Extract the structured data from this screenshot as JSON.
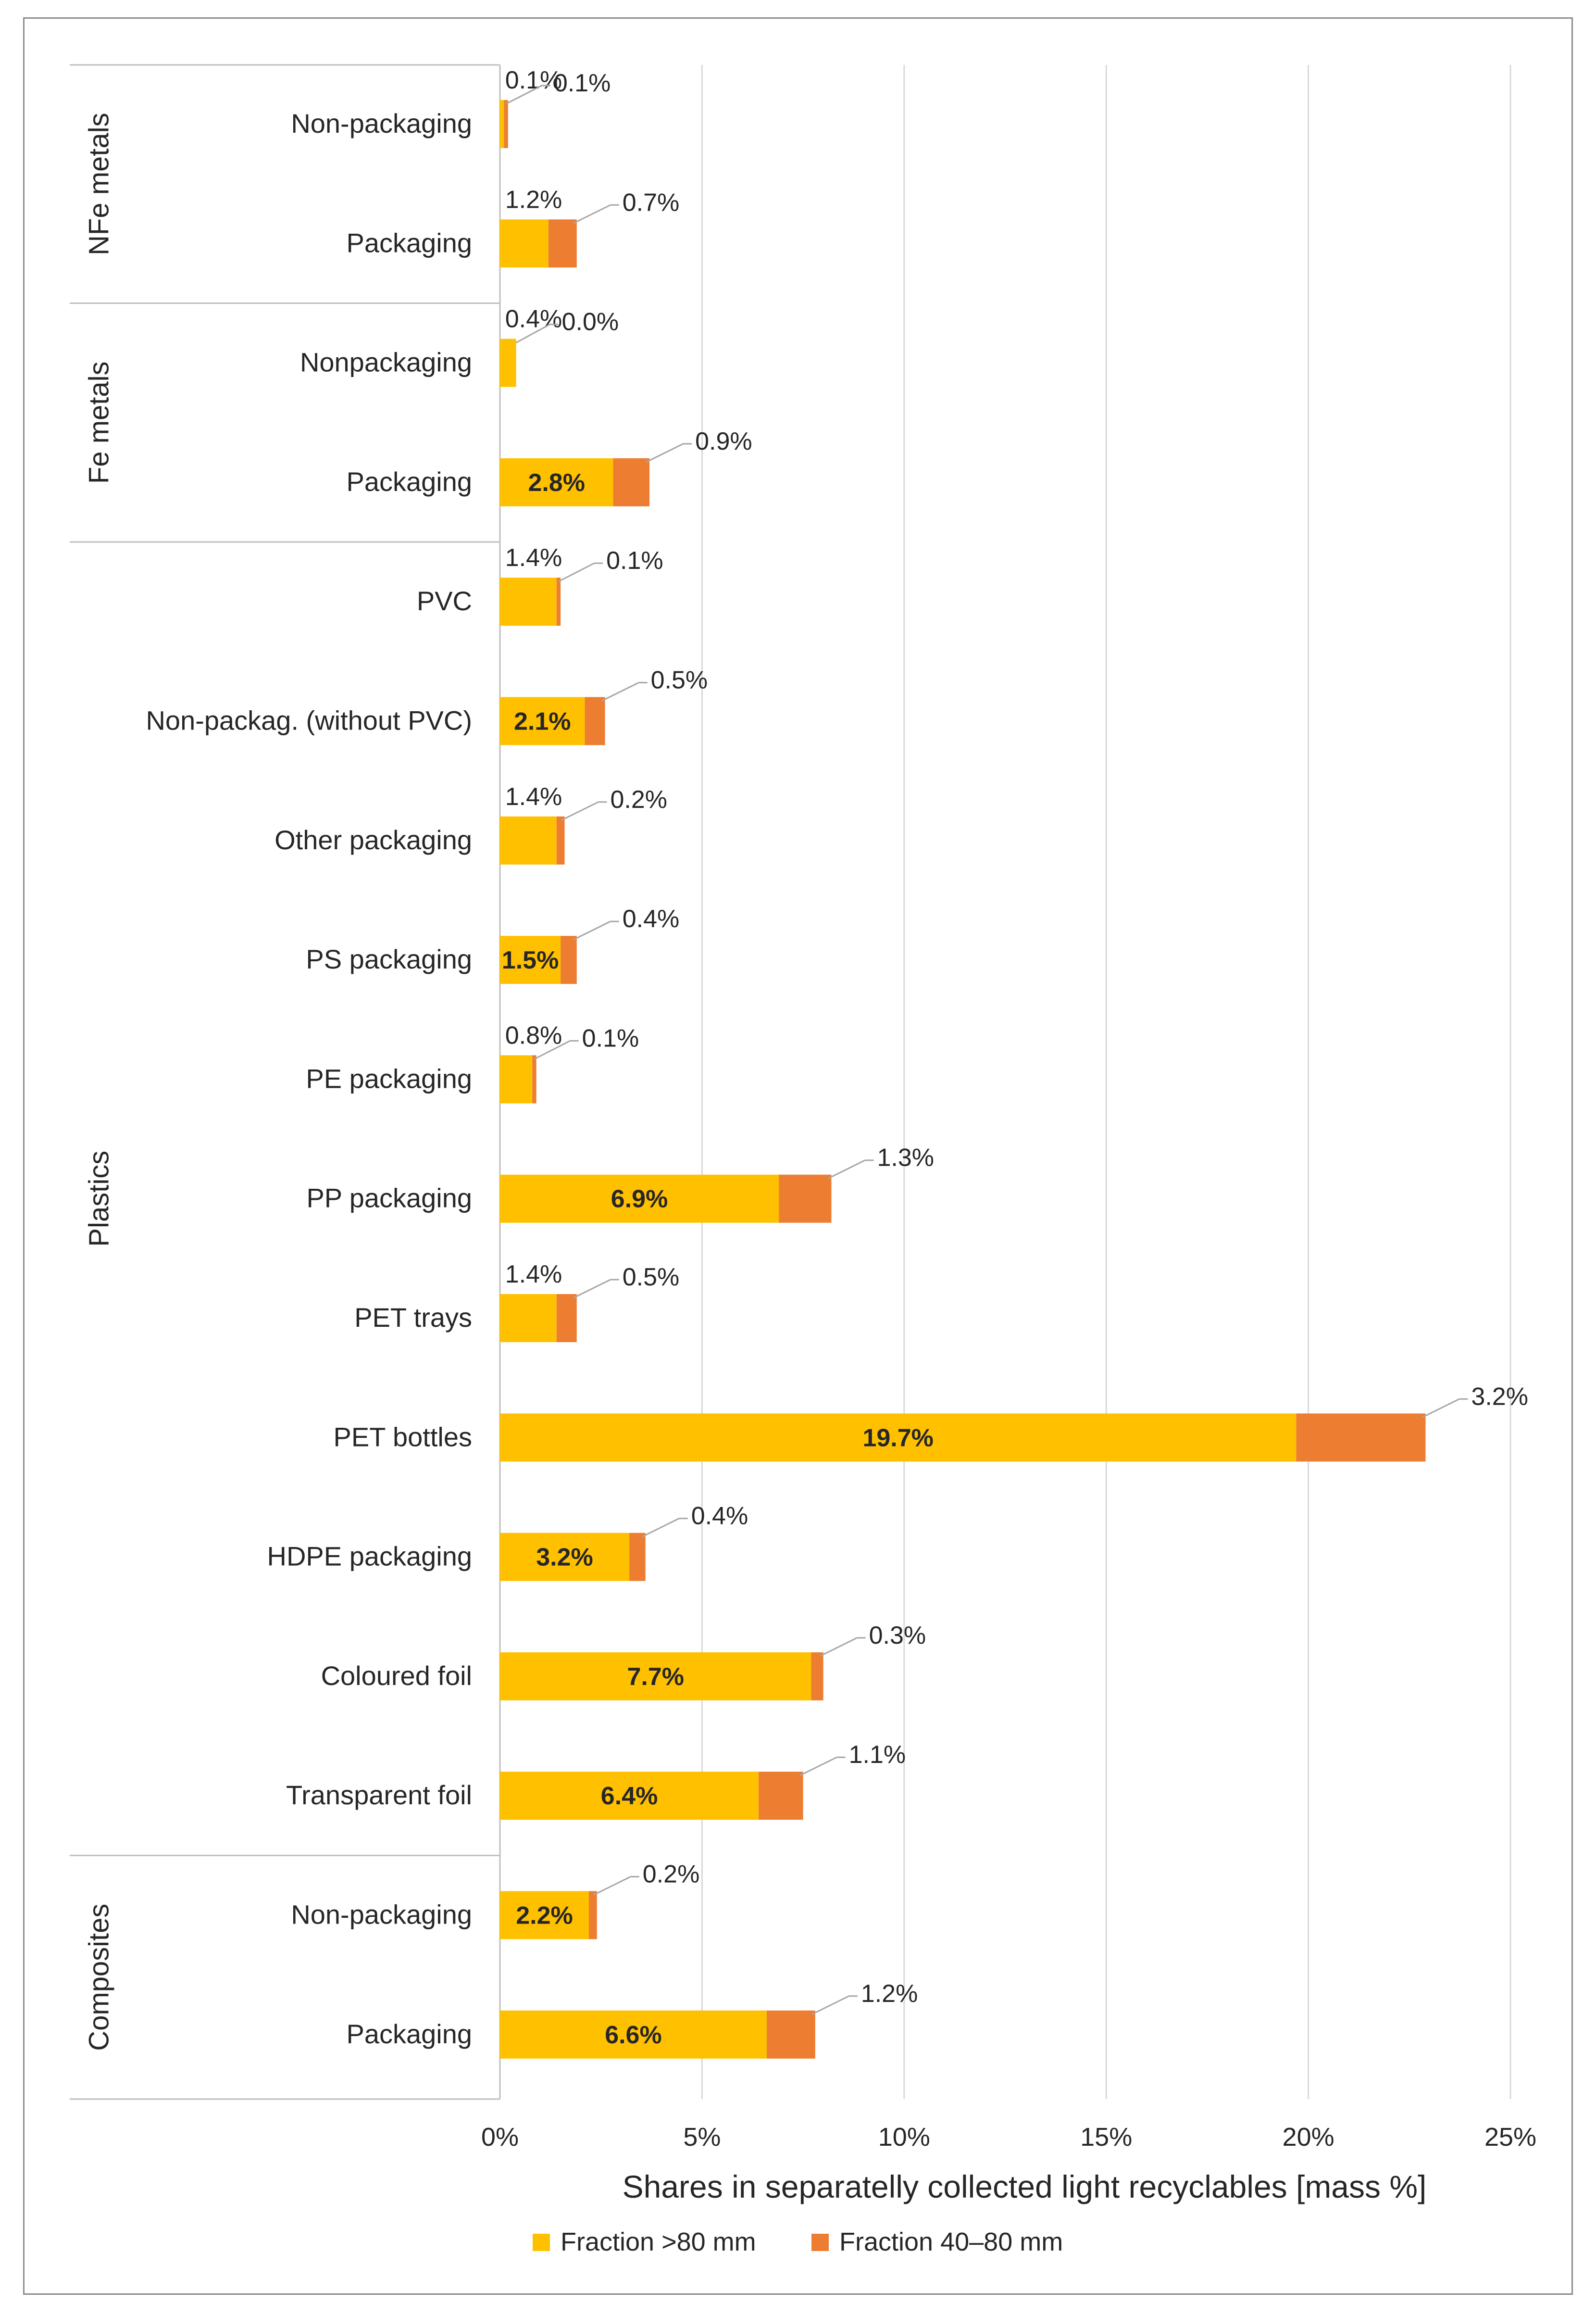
{
  "chart_data": {
    "type": "bar",
    "stacked": true,
    "orientation": "horizontal",
    "xlabel": "Shares in separatelly collected light recyclables [mass %]",
    "xlim": [
      0,
      25
    ],
    "x_ticks": [
      "0%",
      "5%",
      "10%",
      "15%",
      "20%",
      "25%"
    ],
    "grid": true,
    "legend_position": "bottom",
    "groups": [
      {
        "name": "NFe metals",
        "categories": [
          "Non-packaging",
          "Packaging"
        ]
      },
      {
        "name": "Fe metals",
        "categories": [
          "Nonpackaging",
          "Packaging"
        ]
      },
      {
        "name": "Plastics",
        "categories": [
          "PVC",
          "Non-packag. (without PVC)",
          "Other packaging",
          "PS packaging",
          "PE packaging",
          "PP packaging",
          "PET trays",
          "PET bottles",
          "HDPE packaging",
          "Coloured foil",
          "Transparent foil"
        ]
      },
      {
        "name": "Composites",
        "categories": [
          "Non-packaging",
          "Packaging"
        ]
      }
    ],
    "categories": [
      "Non-packaging",
      "Packaging",
      "Nonpackaging",
      "Packaging",
      "PVC",
      "Non-packag. (without PVC)",
      "Other packaging",
      "PS packaging",
      "PE packaging",
      "PP packaging",
      "PET trays",
      "PET bottles",
      "HDPE packaging",
      "Coloured foil",
      "Transparent foil",
      "Non-packaging",
      "Packaging"
    ],
    "series": [
      {
        "name": "Fraction >80 mm",
        "color": "#FFC000",
        "values": [
          0.1,
          1.2,
          0.4,
          2.8,
          1.4,
          2.1,
          1.4,
          1.5,
          0.8,
          6.9,
          1.4,
          19.7,
          3.2,
          7.7,
          6.4,
          2.2,
          6.6
        ],
        "labels": [
          "0.1%",
          "1.2%",
          "0.4%",
          "2.8%",
          "1.4%",
          "2.1%",
          "1.4%",
          "1.5%",
          "0.8%",
          "6.9%",
          "1.4%",
          "19.7%",
          "3.2%",
          "7.7%",
          "6.4%",
          "2.2%",
          "6.6%"
        ]
      },
      {
        "name": "Fraction 40–80  mm",
        "color": "#ED7D31",
        "values": [
          0.1,
          0.7,
          0.0,
          0.9,
          0.1,
          0.5,
          0.2,
          0.4,
          0.1,
          1.3,
          0.5,
          3.2,
          0.4,
          0.3,
          1.1,
          0.2,
          1.2
        ],
        "labels": [
          "0.1%",
          "0.7%",
          "0.0%",
          "0.9%",
          "0.1%",
          "0.5%",
          "0.2%",
          "0.4%",
          "0.1%",
          "1.3%",
          "0.5%",
          "3.2%",
          "0.4%",
          "0.3%",
          "1.1%",
          "0.2%",
          "1.2%"
        ]
      }
    ]
  }
}
